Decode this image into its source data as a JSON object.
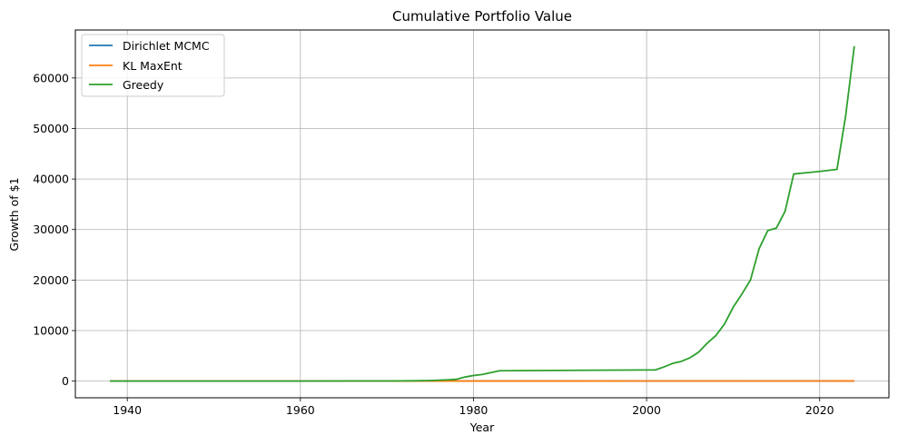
{
  "chart_data": {
    "type": "line",
    "title": "Cumulative Portfolio Value",
    "xlabel": "Year",
    "ylabel": "Growth of $1",
    "xlim": [
      1934,
      2028
    ],
    "ylim": [
      -3300,
      69500
    ],
    "xticks": [
      1940,
      1960,
      1980,
      2000,
      2020
    ],
    "yticks": [
      0,
      10000,
      20000,
      30000,
      40000,
      50000,
      60000
    ],
    "grid": true,
    "legend_position": "top-left",
    "series": [
      {
        "name": "Dirichlet MCMC",
        "color": "#1f77b4",
        "points": [
          [
            1938,
            1
          ],
          [
            1950,
            3
          ],
          [
            1960,
            6
          ],
          [
            1970,
            10
          ],
          [
            1980,
            15
          ],
          [
            1990,
            20
          ],
          [
            2000,
            25
          ],
          [
            2010,
            30
          ],
          [
            2020,
            35
          ],
          [
            2024,
            40
          ]
        ]
      },
      {
        "name": "KL MaxEnt",
        "color": "#ff7f0e",
        "points": [
          [
            1938,
            1
          ],
          [
            1950,
            2
          ],
          [
            1960,
            5
          ],
          [
            1970,
            8
          ],
          [
            1980,
            12
          ],
          [
            1990,
            16
          ],
          [
            2000,
            20
          ],
          [
            2010,
            24
          ],
          [
            2020,
            28
          ],
          [
            2024,
            32
          ]
        ]
      },
      {
        "name": "Greedy",
        "color": "#2ca02c",
        "points": [
          [
            1938,
            1
          ],
          [
            1950,
            3
          ],
          [
            1960,
            8
          ],
          [
            1970,
            30
          ],
          [
            1973,
            60
          ],
          [
            1975,
            120
          ],
          [
            1977,
            250
          ],
          [
            1978,
            350
          ],
          [
            1979,
            800
          ],
          [
            1980,
            1100
          ],
          [
            1981,
            1300
          ],
          [
            1983,
            2050
          ],
          [
            1990,
            2120
          ],
          [
            2000,
            2200
          ],
          [
            2001,
            2200
          ],
          [
            2002,
            2800
          ],
          [
            2003,
            3500
          ],
          [
            2004,
            3900
          ],
          [
            2005,
            4600
          ],
          [
            2006,
            5700
          ],
          [
            2007,
            7500
          ],
          [
            2008,
            9000
          ],
          [
            2009,
            11300
          ],
          [
            2010,
            14600
          ],
          [
            2011,
            17200
          ],
          [
            2012,
            20000
          ],
          [
            2013,
            26200
          ],
          [
            2014,
            29800
          ],
          [
            2015,
            30300
          ],
          [
            2016,
            33600
          ],
          [
            2017,
            41000
          ],
          [
            2020,
            41500
          ],
          [
            2022,
            41900
          ],
          [
            2023,
            52500
          ],
          [
            2024,
            66300
          ]
        ]
      }
    ]
  }
}
